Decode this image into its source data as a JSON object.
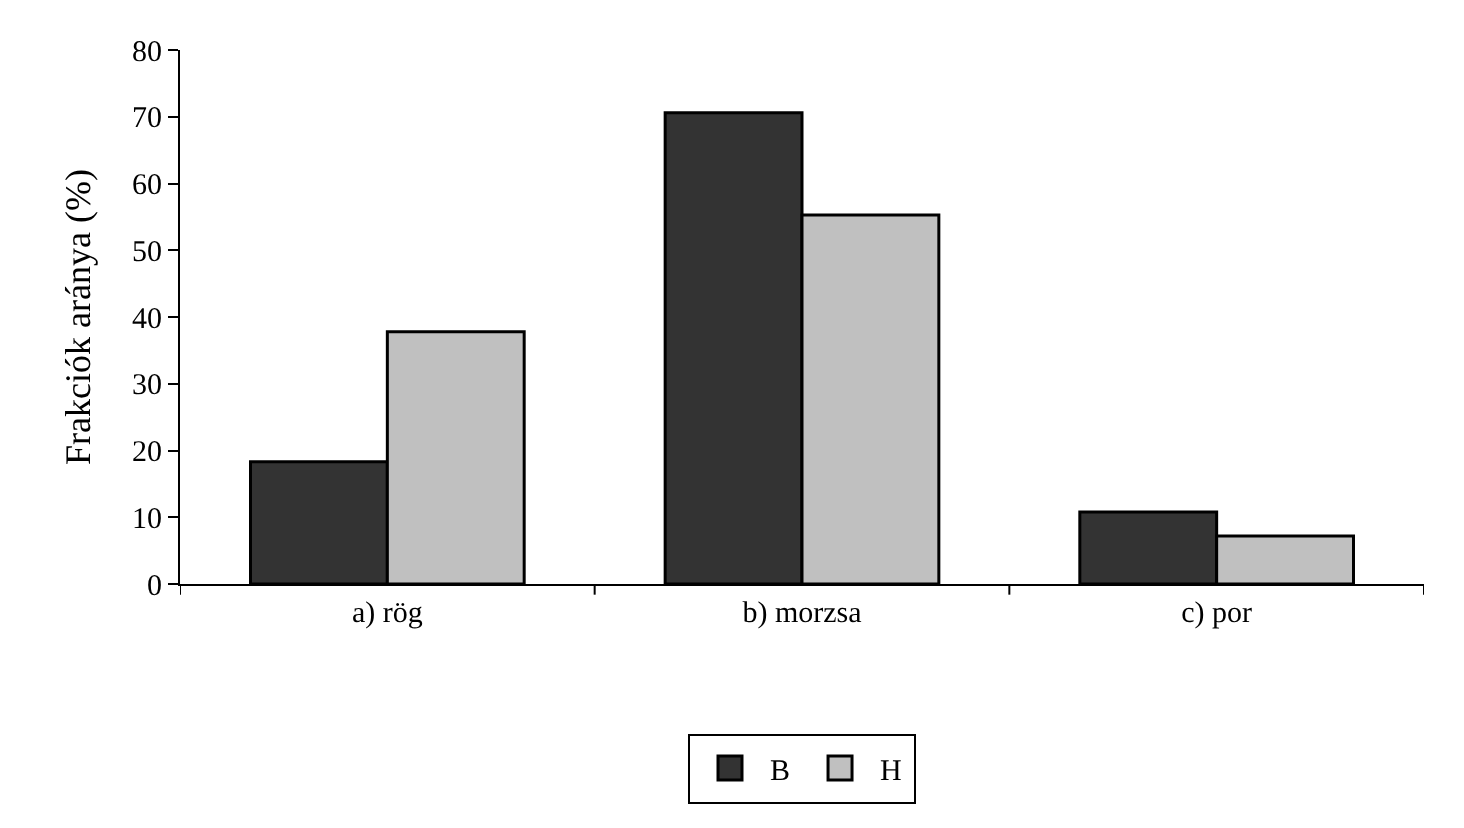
{
  "chart_data": {
    "type": "bar",
    "ylabel": "Frakciók aránya (%)",
    "categories": [
      "a) rög",
      "b) morzsa",
      "c) por"
    ],
    "series": [
      {
        "name": "B",
        "color": "#333333",
        "values": [
          18.3,
          70.6,
          10.8
        ]
      },
      {
        "name": "H",
        "color": "#c0c0c0",
        "values": [
          37.8,
          55.3,
          7.2
        ]
      }
    ],
    "ylim": [
      0,
      80
    ],
    "yticks": [
      0,
      10,
      20,
      30,
      40,
      50,
      60,
      70,
      80
    ],
    "legend": "bottom"
  }
}
